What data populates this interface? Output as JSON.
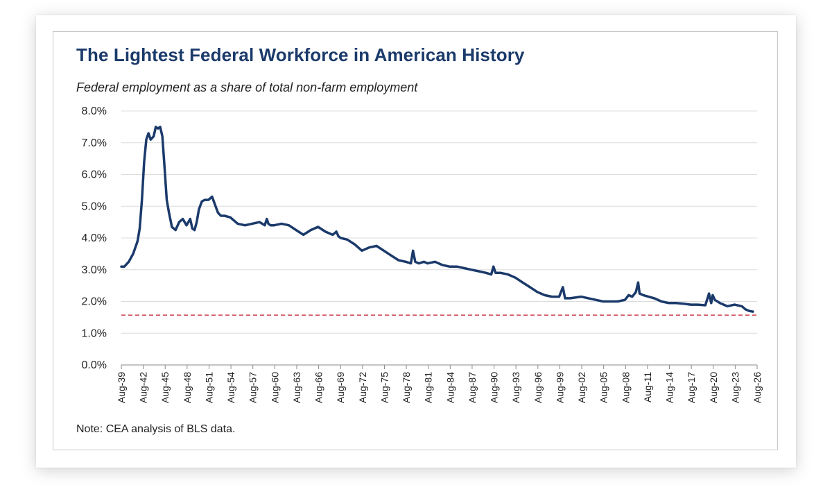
{
  "chart_data": {
    "type": "line",
    "title": "The Lightest Federal Workforce in American History",
    "subtitle": "Federal employment as a share of total non-farm employment",
    "note": "Note: CEA analysis of BLS data.",
    "xlabel": "",
    "ylabel": "",
    "ylim": [
      0,
      8
    ],
    "xlim": [
      1939.583,
      2026.583
    ],
    "grid": true,
    "y_ticks": [
      "0.0%",
      "1.0%",
      "2.0%",
      "3.0%",
      "4.0%",
      "5.0%",
      "6.0%",
      "7.0%",
      "8.0%"
    ],
    "x_ticks": [
      "Aug-39",
      "Aug-42",
      "Aug-45",
      "Aug-48",
      "Aug-51",
      "Aug-54",
      "Aug-57",
      "Aug-60",
      "Aug-63",
      "Aug-66",
      "Aug-69",
      "Aug-72",
      "Aug-75",
      "Aug-78",
      "Aug-81",
      "Aug-84",
      "Aug-87",
      "Aug-90",
      "Aug-93",
      "Aug-96",
      "Aug-99",
      "Aug-02",
      "Aug-05",
      "Aug-08",
      "Aug-11",
      "Aug-14",
      "Aug-17",
      "Aug-20",
      "Aug-23",
      "Aug-26"
    ],
    "series": [
      {
        "color": "#1b3a6b",
        "x": [
          1939.583,
          1940.0,
          1940.6,
          1941.2,
          1941.8,
          1942.1,
          1942.4,
          1942.7,
          1943.0,
          1943.3,
          1943.6,
          1944.0,
          1944.3,
          1944.6,
          1944.9,
          1945.2,
          1945.5,
          1945.8,
          1946.1,
          1946.5,
          1947.0,
          1947.5,
          1948.0,
          1948.5,
          1949.0,
          1949.3,
          1949.6,
          1949.9,
          1950.2,
          1950.6,
          1951.0,
          1951.5,
          1952.0,
          1952.4,
          1952.8,
          1953.2,
          1953.7,
          1954.5,
          1955.5,
          1956.5,
          1957.5,
          1958.5,
          1959.2,
          1959.5,
          1959.7,
          1960.0,
          1960.5,
          1961.5,
          1962.5,
          1963.5,
          1964.5,
          1965.5,
          1966.5,
          1967.5,
          1968.5,
          1969.0,
          1969.3,
          1969.6,
          1970.5,
          1971.5,
          1972.5,
          1973.5,
          1974.5,
          1975.5,
          1976.5,
          1977.5,
          1978.5,
          1979.2,
          1979.5,
          1979.8,
          1980.3,
          1981.0,
          1981.5,
          1982.5,
          1983.5,
          1984.5,
          1985.5,
          1986.5,
          1987.5,
          1988.5,
          1989.5,
          1990.2,
          1990.5,
          1990.8,
          1991.5,
          1992.5,
          1993.5,
          1994.5,
          1995.5,
          1996.5,
          1997.5,
          1998.5,
          1999.5,
          2000.0,
          2000.3,
          2000.5,
          2001.0,
          2002.5,
          2003.5,
          2004.5,
          2005.5,
          2006.5,
          2007.5,
          2008.5,
          2009.0,
          2009.5,
          2010.0,
          2010.3,
          2010.5,
          2011.0,
          2012.5,
          2013.5,
          2014.5,
          2015.5,
          2016.5,
          2017.5,
          2018.5,
          2019.5,
          2020.0,
          2020.3,
          2020.5,
          2020.8,
          2021.5,
          2022.5,
          2023.5,
          2024.5,
          2025.0,
          2025.5,
          2026.0
        ],
        "y": [
          3.1,
          3.1,
          3.25,
          3.5,
          3.9,
          4.3,
          5.2,
          6.4,
          7.1,
          7.3,
          7.1,
          7.2,
          7.5,
          7.45,
          7.5,
          7.2,
          6.2,
          5.2,
          4.8,
          4.35,
          4.25,
          4.5,
          4.6,
          4.4,
          4.6,
          4.3,
          4.25,
          4.5,
          4.9,
          5.15,
          5.2,
          5.2,
          5.3,
          5.05,
          4.8,
          4.7,
          4.7,
          4.65,
          4.45,
          4.4,
          4.45,
          4.5,
          4.4,
          4.6,
          4.45,
          4.4,
          4.4,
          4.45,
          4.4,
          4.25,
          4.1,
          4.25,
          4.35,
          4.2,
          4.1,
          4.2,
          4.05,
          4.0,
          3.95,
          3.8,
          3.6,
          3.7,
          3.75,
          3.6,
          3.45,
          3.3,
          3.25,
          3.2,
          3.6,
          3.25,
          3.2,
          3.25,
          3.2,
          3.25,
          3.15,
          3.1,
          3.1,
          3.05,
          3.0,
          2.95,
          2.9,
          2.85,
          3.1,
          2.9,
          2.9,
          2.85,
          2.75,
          2.6,
          2.45,
          2.3,
          2.2,
          2.15,
          2.15,
          2.45,
          2.1,
          2.1,
          2.1,
          2.15,
          2.1,
          2.05,
          2.0,
          2.0,
          2.0,
          2.05,
          2.2,
          2.15,
          2.3,
          2.6,
          2.25,
          2.2,
          2.1,
          2.0,
          1.95,
          1.95,
          1.93,
          1.9,
          1.9,
          1.88,
          2.25,
          1.95,
          2.2,
          2.05,
          1.95,
          1.85,
          1.9,
          1.85,
          1.75,
          1.7,
          1.68
        ]
      }
    ],
    "reference_line": {
      "y": 1.57,
      "color": "#d24a5a",
      "style": "dashed"
    }
  }
}
